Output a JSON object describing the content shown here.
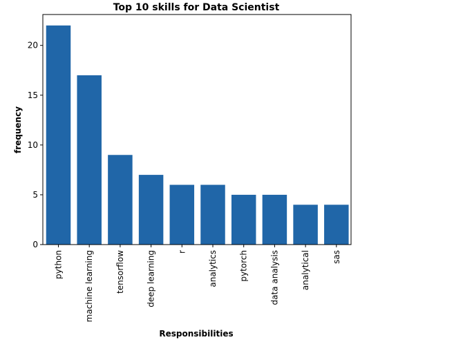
{
  "chart_data": {
    "type": "bar",
    "title": "Top 10 skills for Data Scientist",
    "xlabel": "Responsibilities",
    "ylabel": "frequency",
    "categories": [
      "python",
      "machine learning",
      "tensorflow",
      "deep learning",
      "r",
      "analytics",
      "pytorch",
      "data analysis",
      "analytical",
      "sas"
    ],
    "values": [
      22,
      17,
      9,
      7,
      6,
      6,
      5,
      5,
      4,
      4
    ],
    "ylim": [
      0,
      23.1
    ],
    "yticks": [
      0,
      5,
      10,
      15,
      20
    ],
    "bar_color": "#2066a8",
    "grid": false,
    "legend": "none"
  }
}
